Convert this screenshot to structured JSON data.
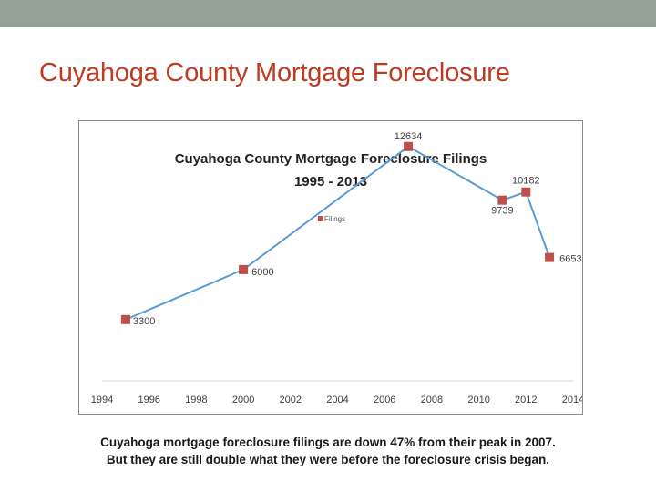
{
  "slide": {
    "title": "Cuyahoga County Mortgage Foreclosure",
    "caption_line1": "Cuyahoga mortgage foreclosure filings are down 47% from their peak in 2007.",
    "caption_line2": "But they are still double what they were before the foreclosure crisis began."
  },
  "colors": {
    "top_bar": "#95a195",
    "title": "#bf3a20",
    "line": "#5b9bd5",
    "marker": "#c0504d",
    "axis": "#d9d9d9"
  },
  "chart_data": {
    "type": "line",
    "title_line1": "Cuyahoga County Mortgage Foreclosure Filings",
    "title_line2": "1995 - 2013",
    "legend": "top",
    "grid": false,
    "x_ticks": [
      "1994",
      "1996",
      "1998",
      "2000",
      "2002",
      "2004",
      "2006",
      "2008",
      "2010",
      "2012",
      "2014"
    ],
    "xlim": [
      1994,
      2014
    ],
    "ylim": [
      0,
      14000
    ],
    "series": [
      {
        "name": "Filings",
        "x": [
          1995,
          2000,
          2007,
          2011,
          2012,
          2013
        ],
        "values": [
          3300,
          6000,
          12634,
          9739,
          10182,
          6653
        ],
        "labels": [
          "3300",
          "6000",
          "12634",
          "9739",
          "10182",
          "6653"
        ]
      }
    ]
  }
}
